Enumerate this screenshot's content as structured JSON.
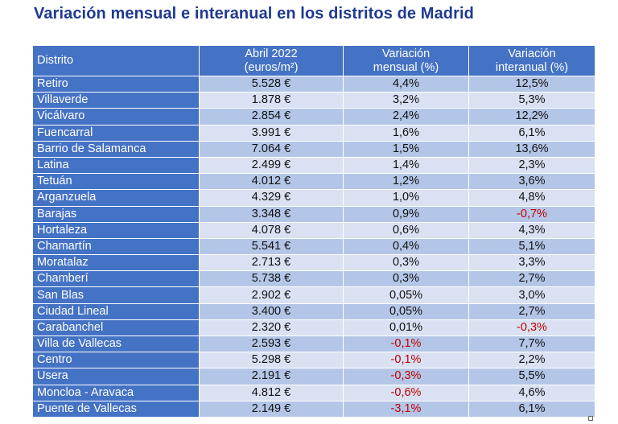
{
  "title": "Variación mensual e interanual en los distritos de Madrid",
  "table": {
    "headers": {
      "district": "Distrito",
      "price_line1": "Abril 2022",
      "price_line2": "(euros/m²)",
      "monthly_line1": "Variación",
      "monthly_line2": "mensual (%)",
      "yearly_line1": "Variación",
      "yearly_line2": "interanual (%)"
    },
    "rows": [
      {
        "district": "Retiro",
        "price": "5.528 €",
        "monthly": "4,4%",
        "yearly": "12,5%"
      },
      {
        "district": "Villaverde",
        "price": "1.878 €",
        "monthly": "3,2%",
        "yearly": "5,3%"
      },
      {
        "district": "Vicálvaro",
        "price": "2.854 €",
        "monthly": "2,4%",
        "yearly": "12,2%"
      },
      {
        "district": "Fuencarral",
        "price": "3.991 €",
        "monthly": "1,6%",
        "yearly": "6,1%"
      },
      {
        "district": "Barrio de Salamanca",
        "price": "7.064 €",
        "monthly": "1,5%",
        "yearly": "13,6%"
      },
      {
        "district": "Latina",
        "price": "2.499 €",
        "monthly": "1,4%",
        "yearly": "2,3%"
      },
      {
        "district": "Tetuán",
        "price": "4.012 €",
        "monthly": "1,2%",
        "yearly": "3,6%"
      },
      {
        "district": "Arganzuela",
        "price": "4.329 €",
        "monthly": "1,0%",
        "yearly": "4,8%"
      },
      {
        "district": "Barajas",
        "price": "3.348 €",
        "monthly": "0,9%",
        "yearly": "-0,7%"
      },
      {
        "district": "Hortaleza",
        "price": "4.078 €",
        "monthly": "0,6%",
        "yearly": "4,3%"
      },
      {
        "district": "Chamartín",
        "price": "5.541 €",
        "monthly": "0,4%",
        "yearly": "5,1%"
      },
      {
        "district": "Moratalaz",
        "price": "2.713 €",
        "monthly": "0,3%",
        "yearly": "3,3%"
      },
      {
        "district": "Chamberí",
        "price": "5.738 €",
        "monthly": "0,3%",
        "yearly": "2,7%"
      },
      {
        "district": "San Blas",
        "price": "2.902 €",
        "monthly": "0,05%",
        "yearly": "3,0%"
      },
      {
        "district": "Ciudad Lineal",
        "price": "3.400 €",
        "monthly": "0,05%",
        "yearly": "2,7%"
      },
      {
        "district": "Carabanchel",
        "price": "2.320 €",
        "monthly": "0,01%",
        "yearly": "-0,3%"
      },
      {
        "district": "Villa de Vallecas",
        "price": "2.593 €",
        "monthly": "-0,1%",
        "yearly": "7,7%"
      },
      {
        "district": "Centro",
        "price": "5.298 €",
        "monthly": "-0,1%",
        "yearly": "2,2%"
      },
      {
        "district": "Usera",
        "price": "2.191 €",
        "monthly": "-0,3%",
        "yearly": "5,5%"
      },
      {
        "district": "Moncloa - Aravaca",
        "price": "4.812 €",
        "monthly": "-0,6%",
        "yearly": "4,6%"
      },
      {
        "district": "Puente de Vallecas",
        "price": "2.149 €",
        "monthly": "-3,1%",
        "yearly": "6,1%"
      }
    ]
  },
  "colors": {
    "title": "#1f3a93",
    "header_bg": "#4472c4",
    "row_band_dark": "#b4c6e7",
    "row_band_light": "#d9e1f2",
    "negative": "#c00000"
  }
}
